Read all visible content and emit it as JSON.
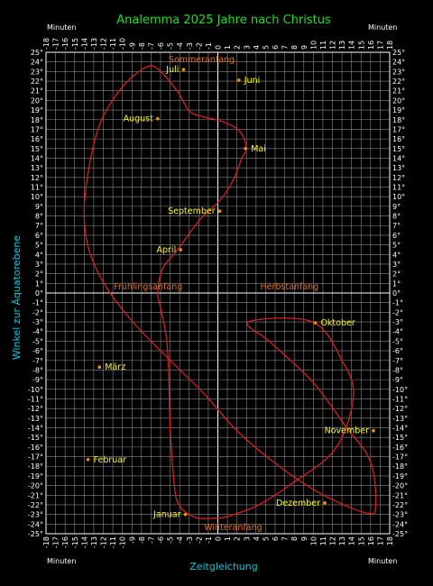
{
  "chart_data": {
    "type": "line",
    "title": "Analemma  2025 Jahre nach Christus",
    "xlabel": "Zeitgleichung",
    "ylabel": "Winkel zur Äquatorebene",
    "x_unit_label": "Minuten",
    "xlim": [
      -18,
      18
    ],
    "ylim": [
      -25,
      25
    ],
    "x_step": 1,
    "y_step": 1,
    "grid": true,
    "colors": {
      "background": "#000000",
      "curve": "#d42020",
      "marker": "#ff8c00",
      "month_label": "#ffff00",
      "season_label": "#e07020",
      "title": "#22dd22",
      "axis_title": "#00c8d8",
      "grid": "#8a8a8a"
    },
    "series": [
      {
        "x": [
          3.2,
          9.9,
          13.0,
          14.2,
          12.3,
          7.6,
          4.3,
          2.0,
          0.7,
          -0.7,
          -2.0,
          -3.2,
          -4.0,
          -4.4,
          -4.7,
          -5.0,
          -5.1,
          -5.2,
          -5.4,
          -6.0,
          -6.3,
          -5.8,
          -4.3,
          -1.8,
          0.2,
          1.6,
          2.5,
          3.0,
          2.3,
          0.5,
          -1.5,
          -3.0,
          -4.2,
          -6.3,
          -7.6,
          -10.0,
          -12.3,
          -13.5,
          -14.0,
          -13.5,
          -11.8,
          -9.0,
          -5.2,
          -1.5,
          1.7,
          5.5,
          10.0,
          13.9,
          15.9,
          16.5,
          16.4,
          15.6,
          13.5,
          10.0,
          5.6
        ],
        "y": [
          -3.0,
          -3.0,
          -7.0,
          -10.7,
          -16.2,
          -19.9,
          -22.0,
          -22.9,
          -23.3,
          -23.4,
          -23.4,
          -22.9,
          -22.1,
          -21.1,
          -18.4,
          -13.9,
          -10.0,
          -7.2,
          -4.5,
          -1.5,
          0.0,
          2.5,
          4.4,
          7.7,
          9.6,
          11.7,
          14.0,
          15.0,
          16.8,
          17.8,
          18.3,
          18.9,
          20.9,
          23.3,
          23.4,
          21.4,
          17.7,
          13.0,
          8.3,
          4.5,
          0.8,
          -2.9,
          -6.8,
          -10.4,
          -14.0,
          -17.3,
          -20.4,
          -22.3,
          -22.9,
          -22.5,
          -19.2,
          -16.7,
          -14.0,
          -9.3,
          -5.2
        ]
      }
    ],
    "month_markers": [
      {
        "label": "Januar",
        "x": -3.4,
        "y": -23.0
      },
      {
        "label": "Februar",
        "x": -13.6,
        "y": -17.3
      },
      {
        "label": "März",
        "x": -12.4,
        "y": -7.7
      },
      {
        "label": "April",
        "x": -3.9,
        "y": 4.5
      },
      {
        "label": "Mai",
        "x": 2.9,
        "y": 15.0
      },
      {
        "label": "Juni",
        "x": 2.2,
        "y": 22.1
      },
      {
        "label": "Juli",
        "x": -3.6,
        "y": 23.2
      },
      {
        "label": "August",
        "x": -6.3,
        "y": 18.1
      },
      {
        "label": "September",
        "x": 0.2,
        "y": 8.5
      },
      {
        "label": "Oktober",
        "x": 10.2,
        "y": -3.1
      },
      {
        "label": "November",
        "x": 16.3,
        "y": -14.3
      },
      {
        "label": "Dezember",
        "x": 11.2,
        "y": -21.8
      }
    ],
    "season_markers": [
      {
        "label": "Sommeranfang",
        "x": -1.7,
        "y": 23.4
      },
      {
        "label": "Winteranfang",
        "x": 1.6,
        "y": -23.4
      },
      {
        "label": "Frühlingsanfang",
        "x": -7.3,
        "y": 0.0
      },
      {
        "label": "Herbstanfang",
        "x": 7.5,
        "y": 0.0
      }
    ]
  }
}
